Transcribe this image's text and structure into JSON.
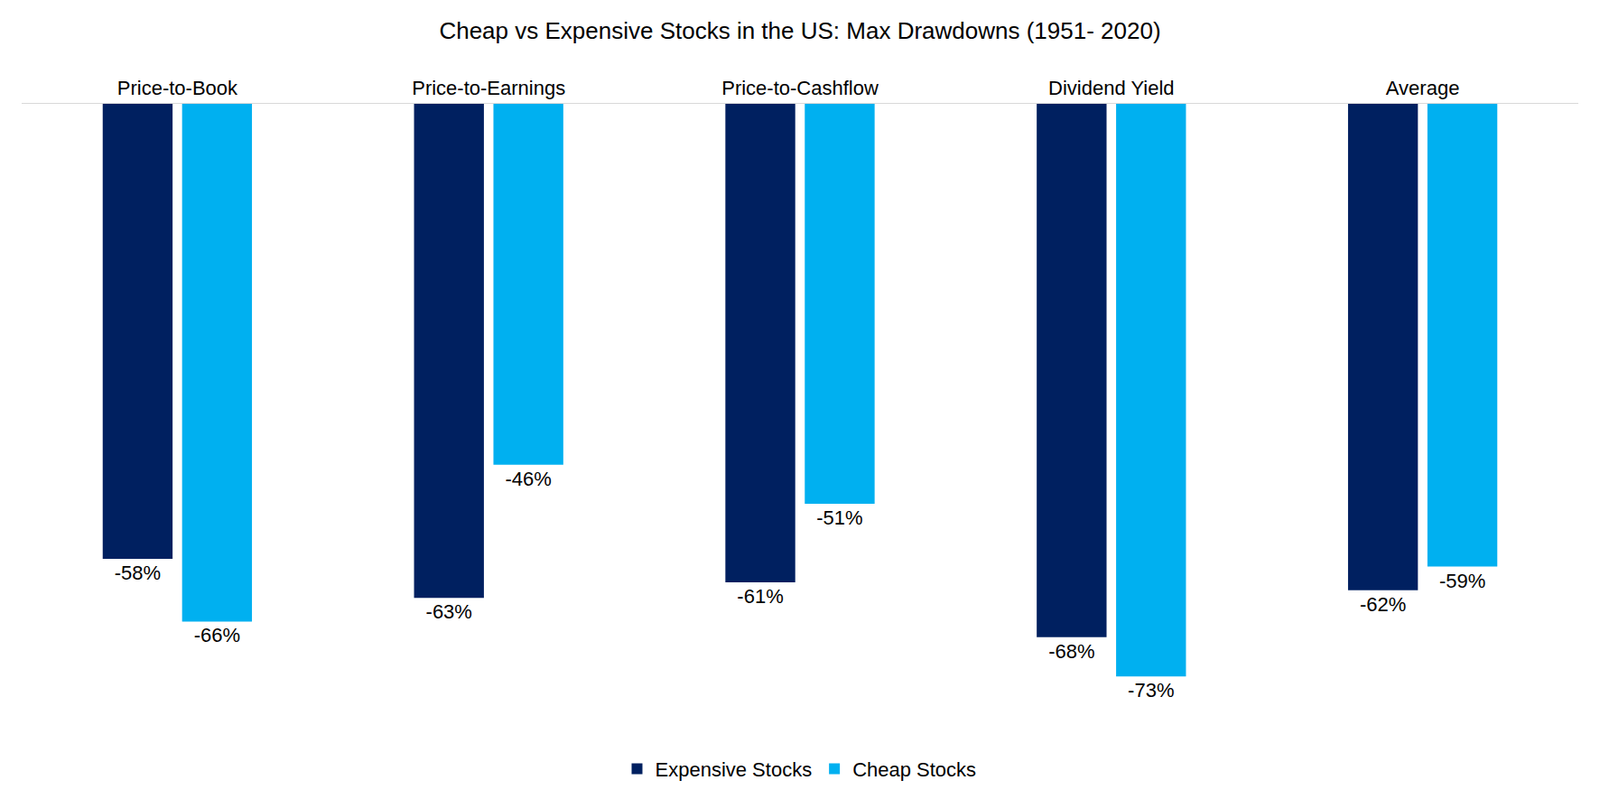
{
  "chart_data": {
    "type": "bar",
    "title": "Cheap vs Expensive Stocks in the US: Max Drawdowns (1951- 2020)",
    "categories": [
      "Price-to-Book",
      "Price-to-Earnings",
      "Price-to-Cashflow",
      "Dividend Yield",
      "Average"
    ],
    "series": [
      {
        "name": "Expensive Stocks",
        "color": "#002060",
        "values": [
          -58,
          -63,
          -61,
          -68,
          -62
        ],
        "value_labels": [
          "-58%",
          "-63%",
          "-61%",
          "-68%",
          "-62%"
        ]
      },
      {
        "name": "Cheap Stocks",
        "color": "#00b0f0",
        "values": [
          -66,
          -46,
          -51,
          -73,
          -59
        ],
        "value_labels": [
          "-66%",
          "-46%",
          "-51%",
          "-73%",
          "-59%"
        ]
      }
    ],
    "ylim": [
      -80,
      0
    ],
    "data_labels": true,
    "tick_labels": "x",
    "grid": false,
    "legend": "bottom"
  }
}
